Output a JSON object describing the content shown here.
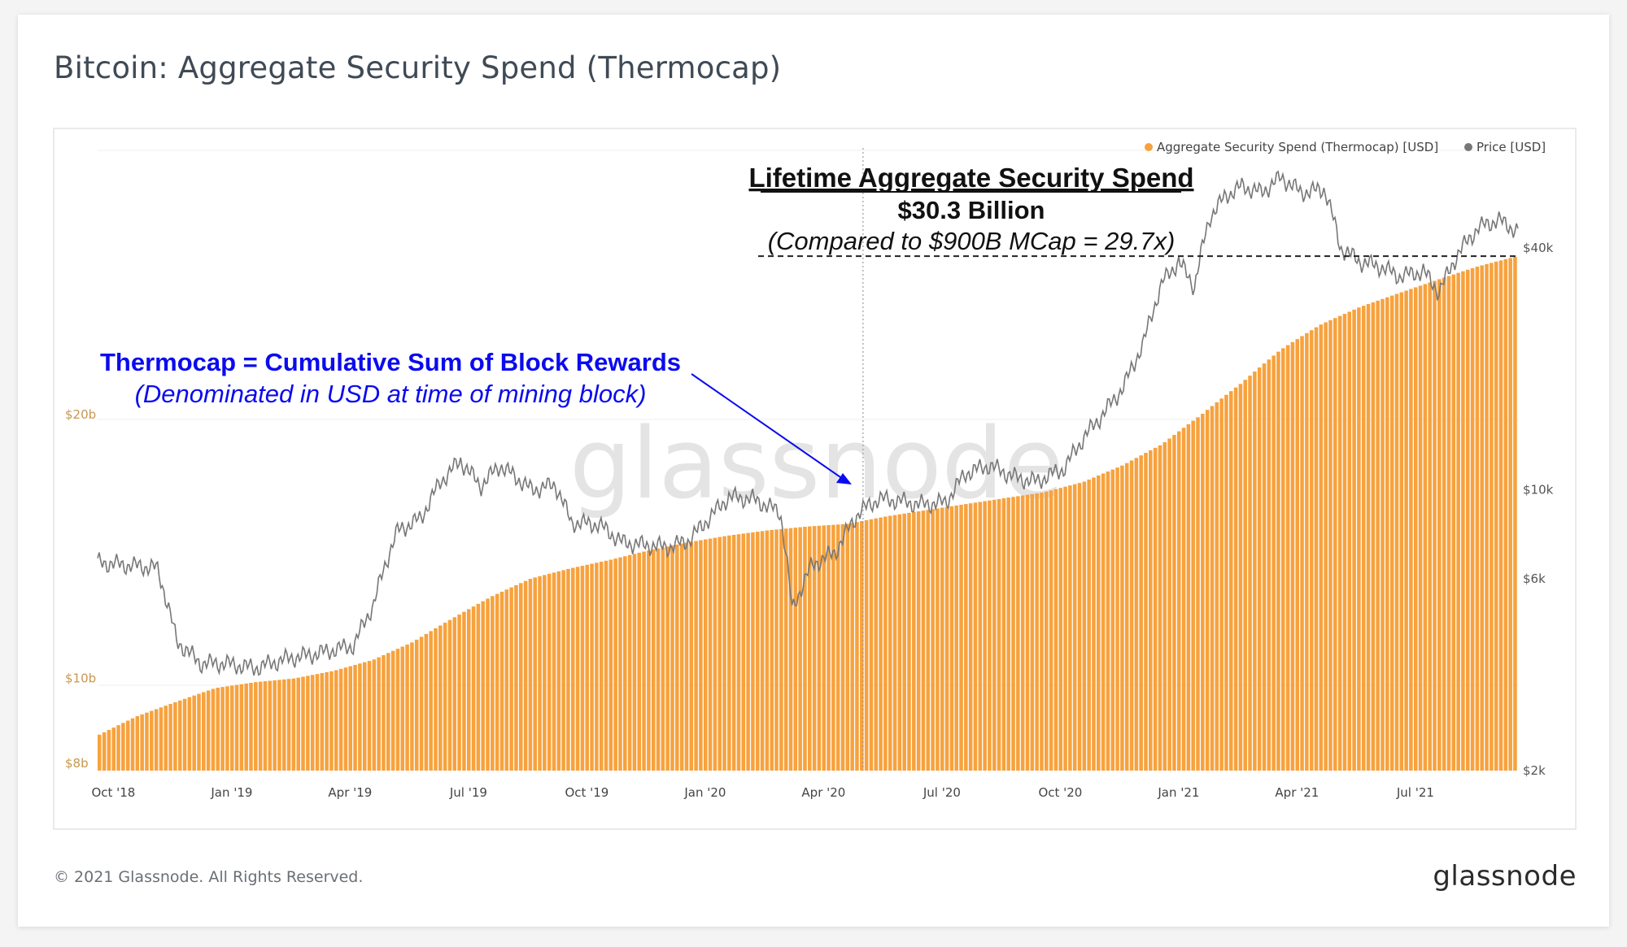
{
  "page": {
    "title": "Bitcoin: Aggregate Security Spend (Thermocap)",
    "footer": "© 2021 Glassnode. All Rights Reserved.",
    "brand": "glassnode",
    "watermark": "glassnode"
  },
  "colors": {
    "thermocap": "#f7a23e",
    "thermocap_edge": "#ffffff",
    "price": "#777777",
    "annotation_blue": "#0b0bef",
    "annotation_black": "#111111"
  },
  "chart_data": {
    "type": "bar+line",
    "legend": [
      {
        "label": "Aggregate Security Spend (Thermocap) [USD]",
        "color": "#f7a23e"
      },
      {
        "label": "Price [USD]",
        "color": "#777777"
      }
    ],
    "x_ticks": [
      "Oct '18",
      "Jan '19",
      "Apr '19",
      "Jul '19",
      "Oct '19",
      "Jan '20",
      "Apr '20",
      "Jul '20",
      "Oct '20",
      "Jan '21",
      "Apr '21",
      "Jul '21"
    ],
    "x_range_months": [
      0,
      36
    ],
    "left_axis": {
      "label_ticks": [
        {
          "value": 8,
          "text": "$8b"
        },
        {
          "value": 10,
          "text": "$10b"
        },
        {
          "value": 20,
          "text": "$20b"
        }
      ],
      "scale": "log",
      "unit": "billion USD",
      "range": [
        7.85,
        40
      ]
    },
    "right_axis": {
      "label_ticks": [
        {
          "value": 2000,
          "text": "$2k"
        },
        {
          "value": 6000,
          "text": "$6k"
        },
        {
          "value": 10000,
          "text": "$10k"
        },
        {
          "value": 40000,
          "text": "$40k"
        }
      ],
      "scale": "log",
      "unit": "USD",
      "range": [
        2000,
        70000
      ]
    },
    "thermocap_series": {
      "name": "Aggregate Security Spend (Thermocap) [USD]",
      "unit": "billion USD",
      "keypoints": [
        [
          0,
          8.6
        ],
        [
          1,
          9.05
        ],
        [
          2,
          9.4
        ],
        [
          3,
          9.75
        ],
        [
          4,
          9.9
        ],
        [
          5,
          10.0
        ],
        [
          6,
          10.2
        ],
        [
          7,
          10.5
        ],
        [
          8,
          11.0
        ],
        [
          9,
          11.7
        ],
        [
          10,
          12.4
        ],
        [
          11,
          13.0
        ],
        [
          12,
          13.35
        ],
        [
          13,
          13.65
        ],
        [
          14,
          14.0
        ],
        [
          15,
          14.3
        ],
        [
          16,
          14.55
        ],
        [
          17,
          14.75
        ],
        [
          18,
          14.9
        ],
        [
          19,
          15.0
        ],
        [
          20,
          15.3
        ],
        [
          21,
          15.55
        ],
        [
          22,
          15.8
        ],
        [
          23,
          16.05
        ],
        [
          24,
          16.3
        ],
        [
          25,
          16.75
        ],
        [
          26,
          17.5
        ],
        [
          27,
          18.5
        ],
        [
          28,
          20.0
        ],
        [
          29,
          21.7
        ],
        [
          30,
          23.7
        ],
        [
          31,
          25.3
        ],
        [
          32,
          26.5
        ],
        [
          33,
          27.5
        ],
        [
          34,
          28.5
        ],
        [
          35,
          29.5
        ],
        [
          36,
          30.3
        ]
      ]
    },
    "price_series": {
      "name": "Price [USD]",
      "unit": "USD",
      "keypoints": [
        [
          0,
          6600
        ],
        [
          0.7,
          6500
        ],
        [
          1.5,
          6400
        ],
        [
          2,
          4200
        ],
        [
          2.6,
          3700
        ],
        [
          3.2,
          3700
        ],
        [
          4,
          3600
        ],
        [
          4.8,
          3800
        ],
        [
          5.5,
          3900
        ],
        [
          6.5,
          4100
        ],
        [
          7,
          5200
        ],
        [
          7.6,
          7900
        ],
        [
          8.2,
          8500
        ],
        [
          8.7,
          10500
        ],
        [
          9.2,
          11800
        ],
        [
          9.7,
          10200
        ],
        [
          10.2,
          11500
        ],
        [
          11,
          10000
        ],
        [
          11.6,
          10300
        ],
        [
          12,
          8300
        ],
        [
          12.7,
          8200
        ],
        [
          13.3,
          7400
        ],
        [
          13.8,
          7300
        ],
        [
          14.5,
          7200
        ],
        [
          15,
          7500
        ],
        [
          15.5,
          8500
        ],
        [
          16,
          9600
        ],
        [
          16.6,
          9500
        ],
        [
          17.3,
          8800
        ],
        [
          17.6,
          5000
        ],
        [
          18.1,
          6500
        ],
        [
          18.7,
          7000
        ],
        [
          19.3,
          8800
        ],
        [
          19.8,
          9500
        ],
        [
          20.3,
          9400
        ],
        [
          20.8,
          9200
        ],
        [
          21.5,
          9300
        ],
        [
          22,
          11000
        ],
        [
          22.6,
          11500
        ],
        [
          23.3,
          10700
        ],
        [
          23.8,
          10500
        ],
        [
          24.5,
          11300
        ],
        [
          25,
          13500
        ],
        [
          25.5,
          15500
        ],
        [
          26,
          18000
        ],
        [
          26.5,
          23000
        ],
        [
          27,
          33000
        ],
        [
          27.4,
          37000
        ],
        [
          27.8,
          32000
        ],
        [
          28.2,
          48000
        ],
        [
          28.6,
          54000
        ],
        [
          29,
          57000
        ],
        [
          29.5,
          55000
        ],
        [
          30,
          60000
        ],
        [
          30.5,
          55000
        ],
        [
          31.1,
          56000
        ],
        [
          31.5,
          40000
        ],
        [
          32,
          37000
        ],
        [
          32.5,
          36000
        ],
        [
          33,
          34000
        ],
        [
          33.6,
          35000
        ],
        [
          34,
          31000
        ],
        [
          34.5,
          39000
        ],
        [
          35,
          45000
        ],
        [
          35.5,
          47000
        ],
        [
          36,
          44000
        ]
      ]
    },
    "annotations": {
      "headline": "Lifetime Aggregate Security Spend",
      "value": "$30.3 Billion",
      "comparison": "(Compared to $900B MCap = 29.7x)",
      "explain_title": "Thermocap = Cumulative Sum of Block Rewards",
      "explain_sub": "(Denominated in USD at time of mining block)"
    },
    "reference_line_value_billion": 30.3,
    "vertical_marker_month": 19.4
  }
}
